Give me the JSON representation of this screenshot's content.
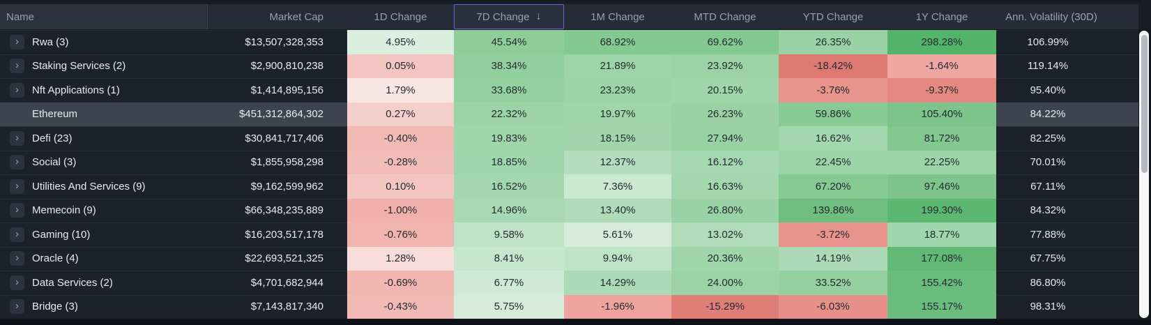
{
  "header": {
    "columns": [
      "Name",
      "Market Cap",
      "1D Change",
      "7D Change",
      "1M Change",
      "MTD Change",
      "YTD Change",
      "1Y Change",
      "Ann. Volatility (30D)"
    ],
    "sorted_column": "7D Change",
    "sort_icon": "↓"
  },
  "rows": [
    {
      "name": "Rwa (3)",
      "expandable": true,
      "selected": false,
      "market_cap": "$13,507,328,353",
      "changes": [
        4.95,
        45.54,
        68.92,
        69.62,
        26.35,
        298.28
      ],
      "volatility": "106.99%"
    },
    {
      "name": "Staking Services (2)",
      "expandable": true,
      "selected": false,
      "market_cap": "$2,900,810,238",
      "changes": [
        0.05,
        38.34,
        21.89,
        23.92,
        -18.42,
        -1.64
      ],
      "volatility": "119.14%"
    },
    {
      "name": "Nft Applications (1)",
      "expandable": true,
      "selected": false,
      "market_cap": "$1,414,895,156",
      "changes": [
        1.79,
        33.68,
        23.23,
        20.15,
        -3.76,
        -9.37
      ],
      "volatility": "95.40%"
    },
    {
      "name": "Ethereum",
      "expandable": false,
      "selected": true,
      "market_cap": "$451,312,864,302",
      "changes": [
        0.27,
        22.32,
        19.97,
        26.23,
        59.86,
        105.4
      ],
      "volatility": "84.22%"
    },
    {
      "name": "Defi (23)",
      "expandable": true,
      "selected": false,
      "market_cap": "$30,841,717,406",
      "changes": [
        -0.4,
        19.83,
        18.15,
        27.94,
        16.62,
        81.72
      ],
      "volatility": "82.25%"
    },
    {
      "name": "Social (3)",
      "expandable": true,
      "selected": false,
      "market_cap": "$1,855,958,298",
      "changes": [
        -0.28,
        18.85,
        12.37,
        16.12,
        22.45,
        22.25
      ],
      "volatility": "70.01%"
    },
    {
      "name": "Utilities And Services (9)",
      "expandable": true,
      "selected": false,
      "market_cap": "$9,162,599,962",
      "changes": [
        0.1,
        16.52,
        7.36,
        16.63,
        67.2,
        97.46
      ],
      "volatility": "67.11%"
    },
    {
      "name": "Memecoin (9)",
      "expandable": true,
      "selected": false,
      "market_cap": "$66,348,235,889",
      "changes": [
        -1.0,
        14.96,
        13.4,
        26.8,
        139.86,
        199.3
      ],
      "volatility": "84.32%"
    },
    {
      "name": "Gaming (10)",
      "expandable": true,
      "selected": false,
      "market_cap": "$16,203,517,178",
      "changes": [
        -0.76,
        9.58,
        5.61,
        13.02,
        -3.72,
        18.77
      ],
      "volatility": "77.88%"
    },
    {
      "name": "Oracle (4)",
      "expandable": true,
      "selected": false,
      "market_cap": "$22,693,521,325",
      "changes": [
        1.28,
        8.41,
        9.94,
        20.36,
        14.19,
        177.08
      ],
      "volatility": "67.75%"
    },
    {
      "name": "Data Services (2)",
      "expandable": true,
      "selected": false,
      "market_cap": "$4,701,682,944",
      "changes": [
        -0.69,
        6.77,
        14.29,
        24.0,
        33.52,
        155.42
      ],
      "volatility": "86.80%"
    },
    {
      "name": "Bridge (3)",
      "expandable": true,
      "selected": false,
      "market_cap": "$7,143,817,340",
      "changes": [
        -0.43,
        5.75,
        -1.96,
        -15.29,
        -6.03,
        155.17
      ],
      "volatility": "98.31%"
    }
  ],
  "colors": {
    "sort_border_accent": "#6964e6",
    "heat_green_max": "#53b469",
    "heat_red_max": "#dd766f",
    "heat_neutral": "#fbf3f2",
    "selected_row_bg": "#3e4350"
  },
  "icons": {
    "expand_chevron": "›"
  }
}
